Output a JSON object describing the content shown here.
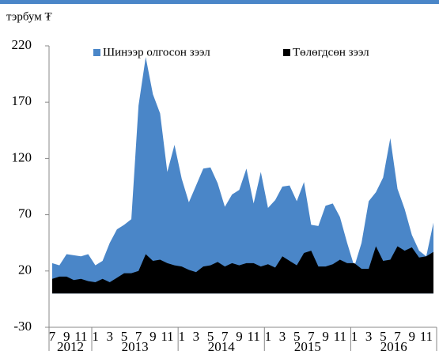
{
  "chart_data": {
    "type": "area",
    "unit_label": "тэрбум ₮",
    "categories": [
      "7",
      null,
      "9",
      null,
      "11",
      null,
      "1",
      null,
      "3",
      null,
      "5",
      null,
      "7",
      null,
      "9",
      null,
      "11",
      null,
      "1",
      null,
      "3",
      null,
      "5",
      null,
      "7",
      null,
      "9",
      null,
      "11",
      null,
      "1",
      null,
      "3",
      null,
      "5",
      null,
      "7",
      null,
      "9",
      null,
      "11",
      null,
      "1",
      null,
      "3",
      null,
      "5",
      null,
      "7",
      null,
      "9",
      null,
      "11",
      null
    ],
    "years": [
      "2012",
      "2012",
      "2012",
      "2012",
      "2012",
      "2012",
      "2013",
      "2013",
      "2013",
      "2013",
      "2013",
      "2013",
      "2013",
      "2013",
      "2013",
      "2013",
      "2013",
      "2013",
      "2014",
      "2014",
      "2014",
      "2014",
      "2014",
      "2014",
      "2014",
      "2014",
      "2014",
      "2014",
      "2014",
      "2014",
      "2015",
      "2015",
      "2015",
      "2015",
      "2015",
      "2015",
      "2015",
      "2015",
      "2015",
      "2015",
      "2015",
      "2015",
      "2016",
      "2016",
      "2016",
      "2016",
      "2016",
      "2016",
      "2016",
      "2016",
      "2016",
      "2016",
      "2016",
      "2016"
    ],
    "series": [
      {
        "name": "Шинээр олгосон зээл",
        "color": "#4a86c8",
        "values": [
          27,
          25,
          35,
          34,
          33,
          35,
          25,
          29,
          45,
          57,
          61,
          66,
          167,
          210,
          177,
          160,
          108,
          132,
          102,
          81,
          96,
          111,
          112,
          98,
          77,
          88,
          92,
          111,
          80,
          108,
          76,
          83,
          95,
          96,
          82,
          99,
          61,
          60,
          78,
          80,
          68,
          45,
          24,
          45,
          82,
          90,
          103,
          138,
          93,
          75,
          52,
          38,
          33,
          63
        ]
      },
      {
        "name": "Төлөгдсөн зээл",
        "color": "#000000",
        "values": [
          13,
          15,
          15,
          12,
          13,
          11,
          10,
          13,
          10,
          14,
          18,
          18,
          20,
          35,
          29,
          30,
          27,
          25,
          24,
          21,
          19,
          24,
          25,
          28,
          24,
          27,
          25,
          27,
          27,
          24,
          26,
          23,
          33,
          29,
          25,
          36,
          38,
          24,
          24,
          26,
          30,
          27,
          27,
          22,
          22,
          42,
          29,
          30,
          42,
          38,
          41,
          32,
          33,
          37
        ]
      }
    ],
    "ylim": [
      -30,
      220
    ],
    "yticks": [
      -30,
      20,
      70,
      120,
      170,
      220
    ]
  }
}
